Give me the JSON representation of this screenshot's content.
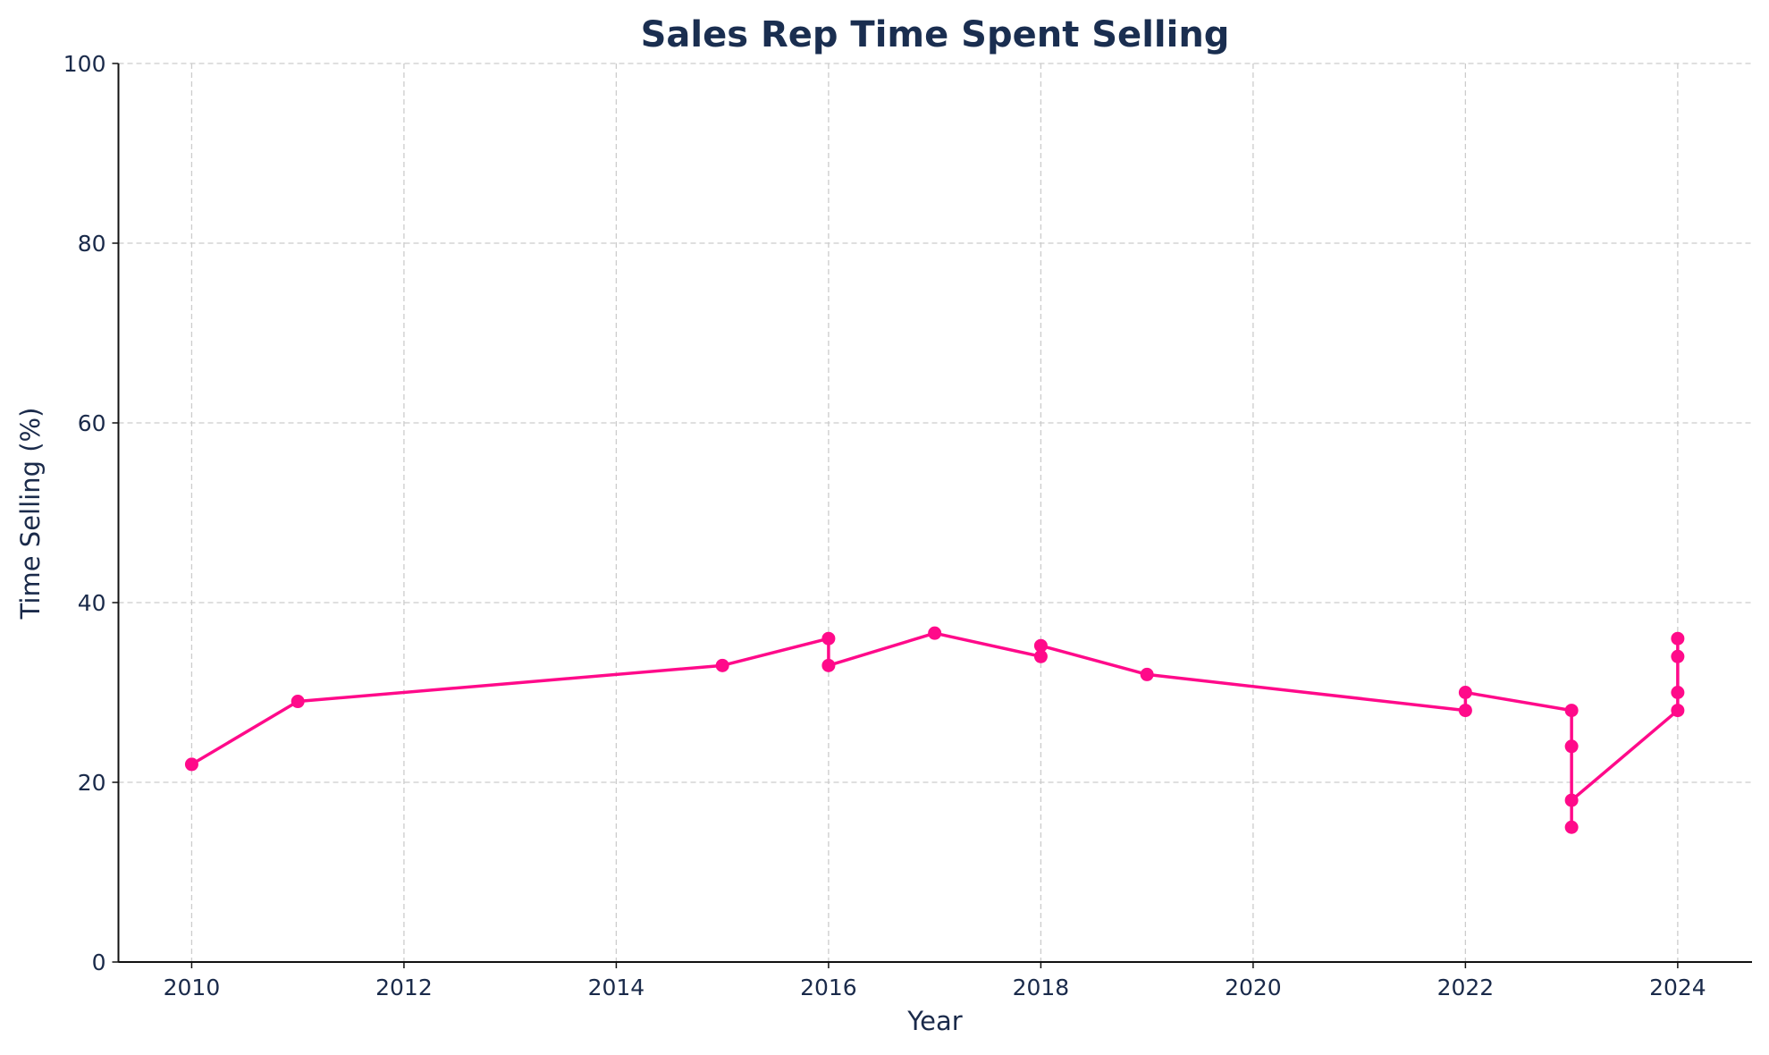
{
  "chart_data": {
    "type": "line",
    "title": "Sales Rep Time Spent Selling",
    "xlabel": "Year",
    "ylabel": "Time Selling (%)",
    "xlim": [
      2009.31,
      2024.7
    ],
    "ylim": [
      0,
      100
    ],
    "xticks": [
      "2010",
      "2012",
      "2014",
      "2016",
      "2018",
      "2020",
      "2022",
      "2024"
    ],
    "yticks": [
      "0",
      "20",
      "40",
      "60",
      "80",
      "100"
    ],
    "grid": true,
    "marker": "circle",
    "color": "#ff0a8a",
    "series": [
      {
        "x": [
          2010,
          2011,
          2015,
          2016,
          2016,
          2017,
          2018,
          2018,
          2019,
          2022,
          2022,
          2023,
          2023,
          2023,
          2023,
          2024,
          2024,
          2024,
          2024
        ],
        "y": [
          22,
          29,
          33,
          36,
          33,
          36.6,
          34,
          35.2,
          32,
          28,
          30,
          28,
          24,
          15,
          18,
          28,
          30,
          34,
          36
        ]
      }
    ]
  }
}
